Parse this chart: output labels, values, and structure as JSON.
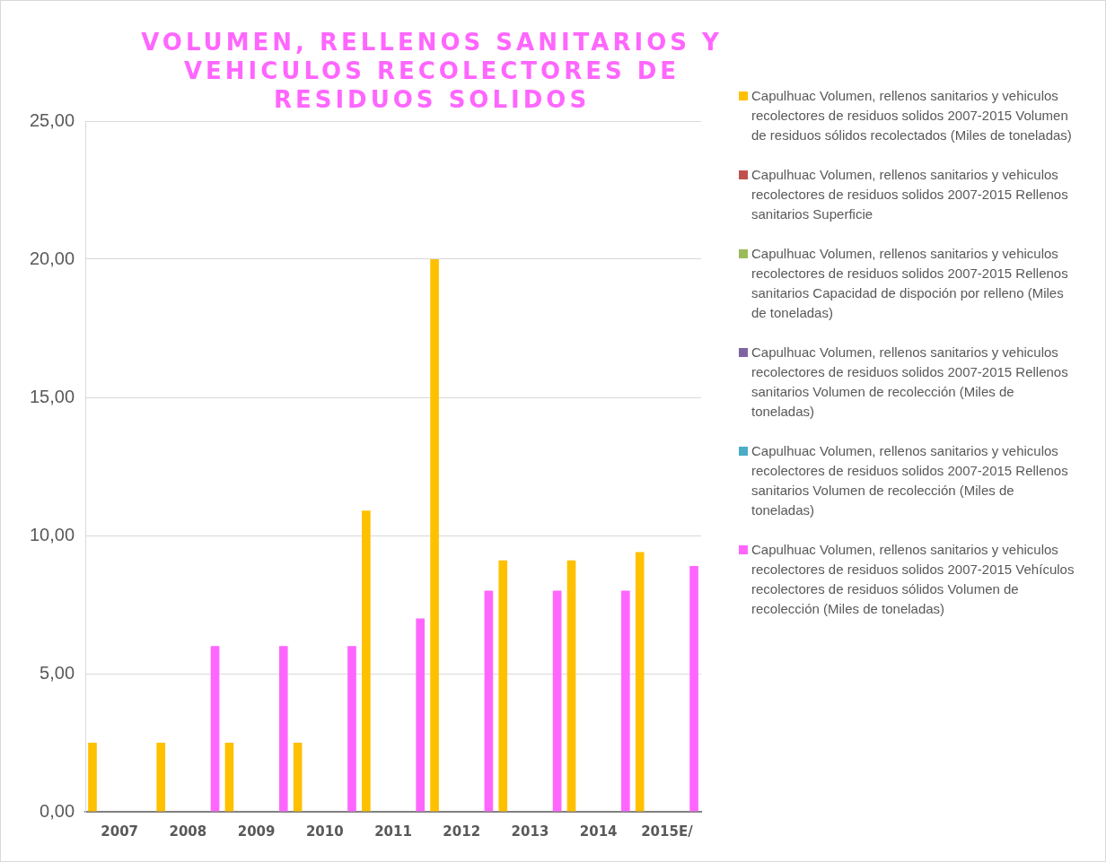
{
  "chart_data": {
    "type": "bar",
    "title": "VOLUMEN, RELLENOS SANITARIOS Y VEHICULOS RECOLECTORES DE RESIDUOS SOLIDOS",
    "categories": [
      "2007",
      "2008",
      "2009",
      "2010",
      "2011",
      "2012",
      "2013",
      "2014",
      "2015E/"
    ],
    "series": [
      {
        "name": "Capulhuac Volumen, rellenos sanitarios y vehiculos recolectores de residuos solidos 2007-2015 Volumen de residuos sólidos recolectados (Miles de toneladas)",
        "color": "#ffc000",
        "values": [
          2.5,
          2.5,
          2.5,
          2.5,
          10.9,
          20.0,
          9.1,
          9.1,
          9.4
        ]
      },
      {
        "name": "Capulhuac Volumen, rellenos sanitarios y vehiculos recolectores de residuos solidos 2007-2015 Rellenos sanitarios Superficie",
        "color": "#c0504d",
        "values": [
          null,
          null,
          null,
          null,
          null,
          null,
          null,
          null,
          null
        ]
      },
      {
        "name": "Capulhuac Volumen, rellenos sanitarios y vehiculos recolectores de residuos solidos 2007-2015 Rellenos sanitarios Capacidad de dispoción por relleno (Miles de toneladas)",
        "color": "#9bbb59",
        "values": [
          null,
          null,
          null,
          null,
          null,
          null,
          null,
          null,
          null
        ]
      },
      {
        "name": "Capulhuac Volumen, rellenos sanitarios y vehiculos recolectores de residuos solidos 2007-2015 Rellenos sanitarios Volumen de recolección (Miles de toneladas)",
        "color": "#8064a2",
        "values": [
          null,
          null,
          null,
          null,
          null,
          null,
          null,
          null,
          null
        ]
      },
      {
        "name": "Capulhuac Volumen, rellenos sanitarios y vehiculos recolectores de residuos solidos 2007-2015 Rellenos sanitarios Volumen de recolección (Miles de toneladas)",
        "color": "#4bacc6",
        "values": [
          null,
          null,
          null,
          null,
          null,
          null,
          null,
          null,
          null
        ]
      },
      {
        "name": "Capulhuac Volumen, rellenos sanitarios y vehiculos recolectores de residuos solidos 2007-2015 Vehículos recolectores de residuos sólidos Volumen de recolección (Miles de toneladas)",
        "color": "#ff66ff",
        "values": [
          null,
          6,
          6,
          6,
          7,
          8,
          8,
          8,
          8.9
        ]
      }
    ],
    "ylim": [
      0,
      25
    ],
    "yticks": [
      {
        "value": 0,
        "label": "0,00"
      },
      {
        "value": 5,
        "label": "5,00"
      },
      {
        "value": 10,
        "label": "10,00"
      },
      {
        "value": 15,
        "label": "15,00"
      },
      {
        "value": 20,
        "label": "20,00"
      },
      {
        "value": 25,
        "label": "25,00"
      }
    ],
    "grid": "y",
    "legend": "right"
  }
}
